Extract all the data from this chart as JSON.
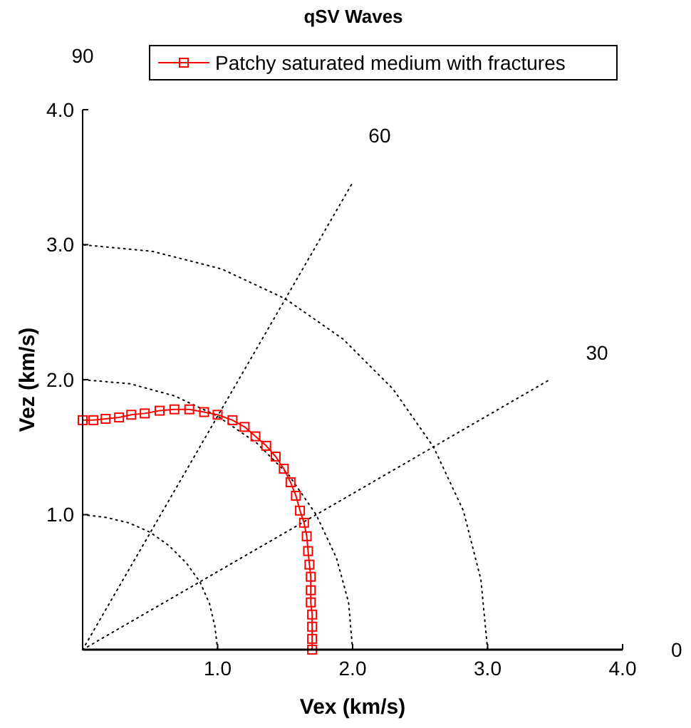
{
  "chart_data": {
    "type": "line",
    "title": "qSV Waves",
    "xlabel": "Vex (km/s)",
    "ylabel": "Vez (km/s)",
    "xlim": [
      0,
      4
    ],
    "ylim": [
      0,
      4
    ],
    "xticks": [
      {
        "value": 1,
        "label": "1.0"
      },
      {
        "value": 2,
        "label": "2.0"
      },
      {
        "value": 3,
        "label": "3.0"
      },
      {
        "value": 4,
        "label": "4.0"
      }
    ],
    "yticks": [
      {
        "value": 1,
        "label": "1.0"
      },
      {
        "value": 2,
        "label": "2.0"
      },
      {
        "value": 3,
        "label": "3.0"
      },
      {
        "value": 4,
        "label": "4.0"
      }
    ],
    "grid": false,
    "legend": "top",
    "marker": "square",
    "line_style": "solid",
    "annotations": [
      "0",
      "30",
      "60",
      "90"
    ],
    "series": [
      {
        "color": "#000000",
        "line_style": "dotted",
        "marker": "none",
        "x": [
          1,
          0.98,
          0.94,
          0.87,
          0.77,
          0.64,
          0.5,
          0.34,
          0.17,
          0
        ],
        "values": [
          0,
          0.17,
          0.34,
          0.5,
          0.64,
          0.77,
          0.87,
          0.94,
          0.98,
          1
        ]
      },
      {
        "color": "#000000",
        "line_style": "dotted",
        "marker": "none",
        "x": [
          2,
          1.97,
          1.88,
          1.73,
          1.53,
          1.29,
          1,
          0.68,
          0.35,
          0
        ],
        "values": [
          0,
          0.35,
          0.68,
          1,
          1.29,
          1.53,
          1.73,
          1.88,
          1.97,
          2
        ]
      },
      {
        "color": "#000000",
        "line_style": "dotted",
        "marker": "none",
        "x": [
          3,
          2.95,
          2.82,
          2.6,
          2.3,
          1.93,
          1.5,
          1.03,
          0.52,
          0
        ],
        "values": [
          0,
          0.52,
          1.03,
          1.5,
          1.93,
          2.3,
          2.6,
          2.82,
          2.95,
          3
        ]
      },
      {
        "color": "#000000",
        "line_style": "dotted",
        "marker": "none",
        "x": [
          0,
          3.46
        ],
        "values": [
          0,
          2
        ]
      },
      {
        "color": "#000000",
        "line_style": "dotted",
        "marker": "none",
        "x": [
          0,
          2
        ],
        "values": [
          0,
          3.46
        ]
      },
      {
        "name": "Patchy saturated medium with fractures",
        "color": "#ff0000",
        "x": [
          0,
          0.08,
          0.17,
          0.27,
          0.36,
          0.46,
          0.57,
          0.68,
          0.79,
          0.9,
          1,
          1.11,
          1.2,
          1.28,
          1.36,
          1.43,
          1.49,
          1.54,
          1.58,
          1.61,
          1.64,
          1.66,
          1.67,
          1.68,
          1.69,
          1.69,
          1.69,
          1.7,
          1.7,
          1.7,
          1.7
        ],
        "values": [
          1.7,
          1.7,
          1.71,
          1.72,
          1.74,
          1.75,
          1.77,
          1.78,
          1.78,
          1.76,
          1.74,
          1.7,
          1.65,
          1.58,
          1.51,
          1.43,
          1.34,
          1.24,
          1.14,
          1.03,
          0.94,
          0.84,
          0.73,
          0.63,
          0.54,
          0.44,
          0.35,
          0.26,
          0.17,
          0.08,
          0
        ]
      }
    ]
  }
}
